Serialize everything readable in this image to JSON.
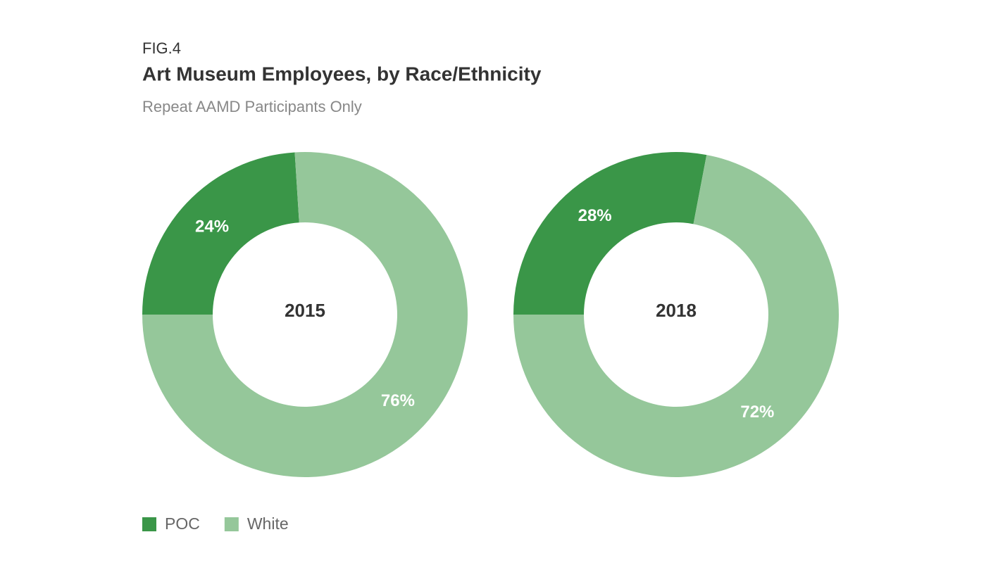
{
  "header": {
    "label": "FIG.4",
    "title": "Art Museum Employees, by Race/Ethnicity",
    "subtitle": "Repeat AAMD Participants Only"
  },
  "chart_data": [
    {
      "type": "donut",
      "center_label": "2015",
      "categories": [
        "POC",
        "White"
      ],
      "values": [
        24,
        76
      ],
      "value_labels": [
        "24%",
        "76%"
      ],
      "colors": [
        "#3a9648",
        "#95c79a"
      ]
    },
    {
      "type": "donut",
      "center_label": "2018",
      "categories": [
        "POC",
        "White"
      ],
      "values": [
        28,
        72
      ],
      "value_labels": [
        "28%",
        "72%"
      ],
      "colors": [
        "#3a9648",
        "#95c79a"
      ]
    }
  ]
}
